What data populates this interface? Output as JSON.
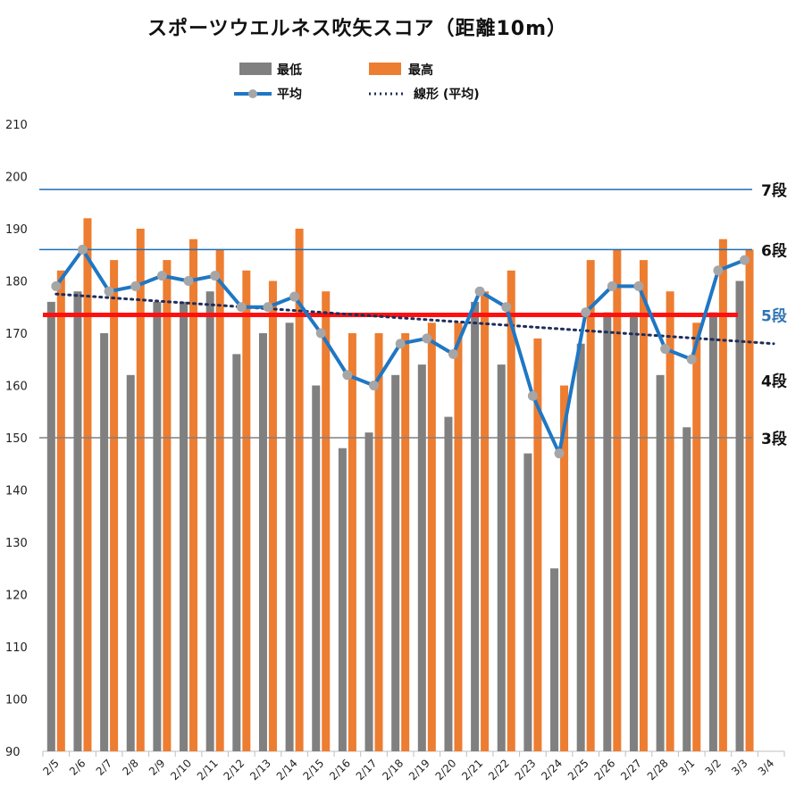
{
  "chart_data": {
    "type": "bar",
    "title": "スポーツウエルネス吹矢スコア（距離10m）",
    "categories": [
      "2/5",
      "2/6",
      "2/7",
      "2/8",
      "2/9",
      "2/10",
      "2/11",
      "2/12",
      "2/13",
      "2/14",
      "2/15",
      "2/16",
      "2/17",
      "2/18",
      "2/19",
      "2/20",
      "2/21",
      "2/22",
      "2/23",
      "2/24",
      "2/25",
      "2/26",
      "2/27",
      "2/28",
      "3/1",
      "3/2",
      "3/3",
      "3/4"
    ],
    "ylim": [
      90,
      210
    ],
    "yticks": [
      90,
      100,
      110,
      120,
      130,
      140,
      150,
      160,
      170,
      180,
      190,
      200,
      210
    ],
    "grid": false,
    "legend_position": "top",
    "series": [
      {
        "name": "最低",
        "kind": "bar",
        "color": "#808080",
        "values": [
          176,
          178,
          170,
          162,
          176,
          176,
          178,
          166,
          170,
          172,
          160,
          148,
          151,
          162,
          164,
          154,
          176,
          164,
          147,
          125,
          168,
          174,
          174,
          162,
          152,
          174,
          180,
          null
        ]
      },
      {
        "name": "最高",
        "kind": "bar",
        "color": "#ED7D31",
        "values": [
          182,
          192,
          184,
          190,
          184,
          188,
          186,
          182,
          180,
          190,
          178,
          170,
          170,
          170,
          172,
          172,
          178,
          182,
          169,
          160,
          184,
          186,
          184,
          178,
          172,
          188,
          186,
          null
        ]
      },
      {
        "name": "平均",
        "kind": "line",
        "color": "#1F77C4",
        "marker_color": "#A6A6A6",
        "values": [
          179,
          186,
          178,
          179,
          181,
          180,
          181,
          175,
          175,
          177,
          170,
          162,
          160,
          168,
          169,
          166,
          178,
          175,
          158,
          147,
          174,
          179,
          179,
          167,
          165,
          182,
          184,
          null
        ]
      },
      {
        "name": "線形 (平均)",
        "kind": "trend",
        "color": "#1F2D5A",
        "start": 177.5,
        "end": 168
      }
    ],
    "reference_lines": [
      {
        "label": "7段",
        "value": 197.5,
        "color": "#1F6FB4",
        "label_color": "#111111"
      },
      {
        "label": "6段",
        "value": 186,
        "color": "#1F6FB4",
        "label_color": "#111111"
      },
      {
        "label": "5段",
        "value": 173.5,
        "color": "#FF1010",
        "label_color": "#2E74B5"
      },
      {
        "label": "4段",
        "value": 161,
        "color": "none",
        "label_color": "#111111"
      },
      {
        "label": "3段",
        "value": 150,
        "color": "#808080",
        "label_color": "#111111"
      }
    ]
  }
}
